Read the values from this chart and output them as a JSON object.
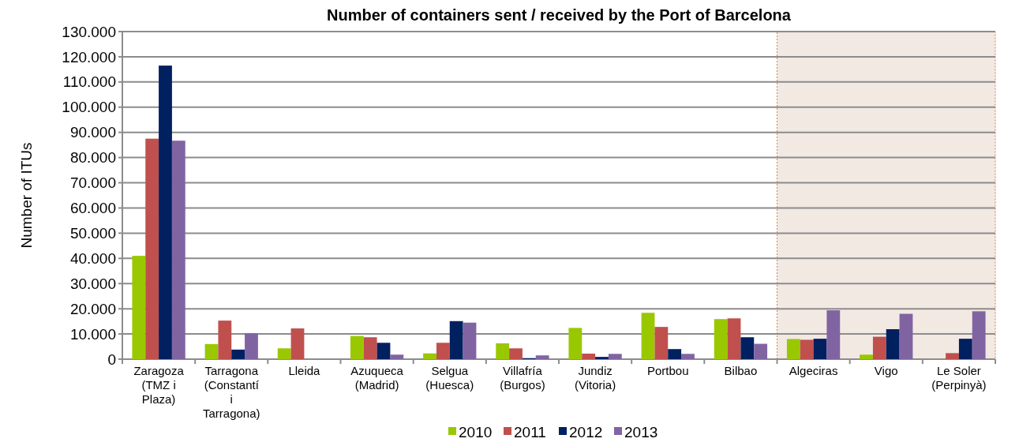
{
  "chart_data": {
    "type": "bar",
    "title": "Number of containers sent / received by the Port of Barcelona",
    "ylabel": "Number of ITUs",
    "categories": [
      "Zaragoza (TMZ i Plaza)",
      "Tarragona (Constantí i Tarragona)",
      "Lleida",
      "Azuqueca (Madrid)",
      "Selgua (Huesca)",
      "Villafría (Burgos)",
      "Jundiz (Vitoria)",
      "Portbou",
      "Bilbao",
      "Algeciras",
      "Vigo",
      "Le Soler (Perpinyà)"
    ],
    "series": [
      {
        "name": "2010",
        "color": "#99c800",
        "values": [
          41000,
          6000,
          4300,
          9200,
          2300,
          6300,
          12400,
          18400,
          15900,
          8000,
          1800,
          null
        ]
      },
      {
        "name": "2011",
        "color": "#c0504d",
        "values": [
          87500,
          15300,
          12200,
          8700,
          6500,
          4300,
          2200,
          12800,
          16200,
          7700,
          8900,
          2400
        ]
      },
      {
        "name": "2012",
        "color": "#002060",
        "values": [
          116500,
          3800,
          null,
          6500,
          15100,
          400,
          900,
          4000,
          8700,
          8100,
          11900,
          8100
        ]
      },
      {
        "name": "2013",
        "color": "#8064a2",
        "values": [
          86700,
          10300,
          null,
          1800,
          14500,
          1500,
          2100,
          2100,
          6100,
          19400,
          18000,
          19000
        ]
      }
    ],
    "ylim": [
      0,
      130000
    ],
    "yticks": [
      {
        "value": 0,
        "label": "0"
      },
      {
        "value": 10000,
        "label": "10.000"
      },
      {
        "value": 20000,
        "label": "20.000"
      },
      {
        "value": 30000,
        "label": "30.000"
      },
      {
        "value": 40000,
        "label": "40.000"
      },
      {
        "value": 50000,
        "label": "50.000"
      },
      {
        "value": 60000,
        "label": "60.000"
      },
      {
        "value": 70000,
        "label": "70.000"
      },
      {
        "value": 80000,
        "label": "80.000"
      },
      {
        "value": 90000,
        "label": "90.000"
      },
      {
        "value": 100000,
        "label": "100.000"
      },
      {
        "value": 110000,
        "label": "110.000"
      },
      {
        "value": 120000,
        "label": "120.000"
      },
      {
        "value": 130000,
        "label": "130.000"
      }
    ],
    "bands": [
      {
        "axis": "x",
        "from": "Algeciras",
        "to": "Le Soler (Perpinyà)",
        "color": "#f2e9e3"
      }
    ],
    "grid": "y",
    "legend": "bottom"
  }
}
